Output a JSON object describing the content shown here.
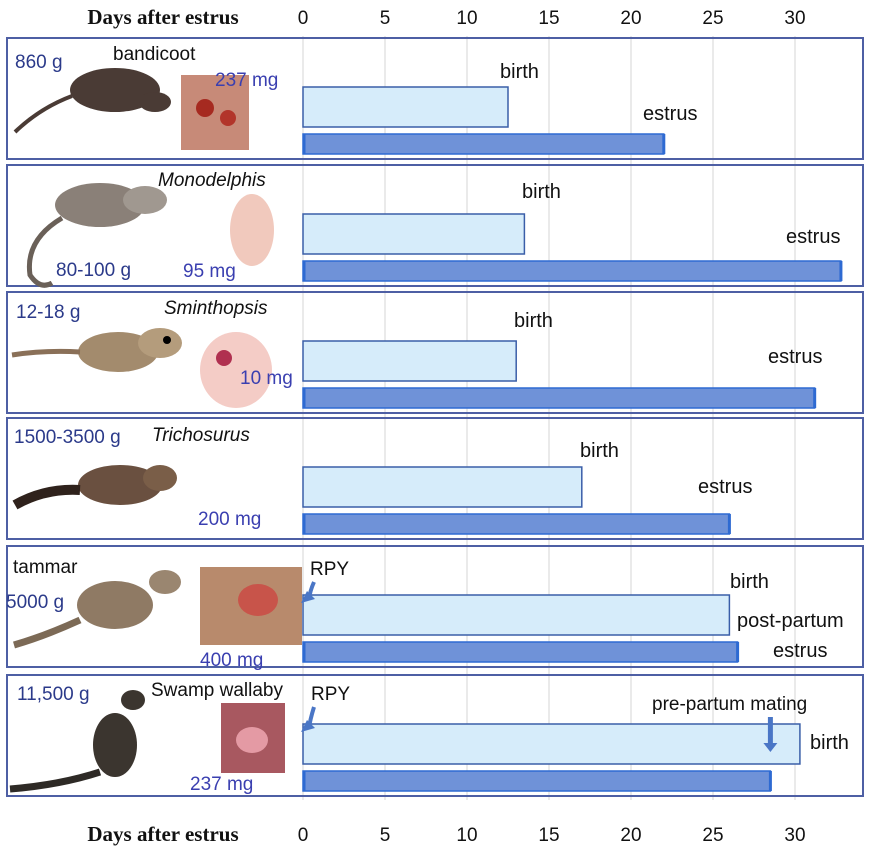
{
  "chart_data": {
    "type": "bar",
    "orientation": "horizontal",
    "axis_label": "Days after estrus",
    "xlim": [
      0,
      33
    ],
    "xticks": [
      0,
      5,
      10,
      15,
      20,
      25,
      30
    ],
    "grid": true,
    "colors": {
      "birth_fill": "#d6ecfa",
      "bar_stroke": "#3a5ea8",
      "estrus_fill": "#6f92d8",
      "estrus_edge": "#2e6ad2",
      "panel_border": "#4e5fa4",
      "weight_text": "#2b3a8a",
      "neonate_text": "#3a3fb0",
      "arrow": "#4a76c6"
    },
    "species": [
      {
        "name": "bandicoot",
        "adult_weight": "860 g",
        "neonate_weight": "237 mg",
        "birth_day": 12.5,
        "estrus_day": 22,
        "birth_label": "birth",
        "estrus_label": "estrus",
        "animal_icon": "bandicoot-icon",
        "neonate_icon": "neonate-photo-icon"
      },
      {
        "name": "Monodelphis",
        "adult_weight": "80-100 g",
        "neonate_weight": "95 mg",
        "birth_day": 13.5,
        "estrus_day": 32.8,
        "birth_label": "birth",
        "estrus_label": "estrus",
        "animal_icon": "monodelphis-icon",
        "neonate_icon": "neonate-embryo-icon"
      },
      {
        "name": "Sminthopsis",
        "adult_weight": "12-18 g",
        "neonate_weight": "10 mg",
        "birth_day": 13,
        "estrus_day": 31.2,
        "birth_label": "birth",
        "estrus_label": "estrus",
        "animal_icon": "sminthopsis-icon",
        "neonate_icon": "neonate-embryo-icon"
      },
      {
        "name": "Trichosurus",
        "adult_weight": "1500-3500 g",
        "neonate_weight": "200 mg",
        "birth_day": 17,
        "estrus_day": 26,
        "birth_label": "birth",
        "estrus_label": "estrus",
        "animal_icon": "possum-icon",
        "neonate_icon": ""
      },
      {
        "name": "tammar",
        "adult_weight": "5000 g",
        "neonate_weight": "400 mg",
        "birth_day": 26,
        "estrus_day": 26.5,
        "birth_label": "birth",
        "estrus_label": "post-partum\nestrus",
        "rpy_label": "RPY",
        "animal_icon": "tammar-wallaby-icon",
        "neonate_icon": "neonate-photo-icon"
      },
      {
        "name": "Swamp wallaby",
        "adult_weight": "11,500 g",
        "neonate_weight": "237 mg",
        "birth_day": 30.3,
        "estrus_day": 28.5,
        "birth_label": "birth",
        "mating_label": "pre-partum mating",
        "mating_day": 28.5,
        "rpy_label": "RPY",
        "animal_icon": "swamp-wallaby-icon",
        "neonate_icon": "neonate-photo-icon"
      }
    ]
  }
}
